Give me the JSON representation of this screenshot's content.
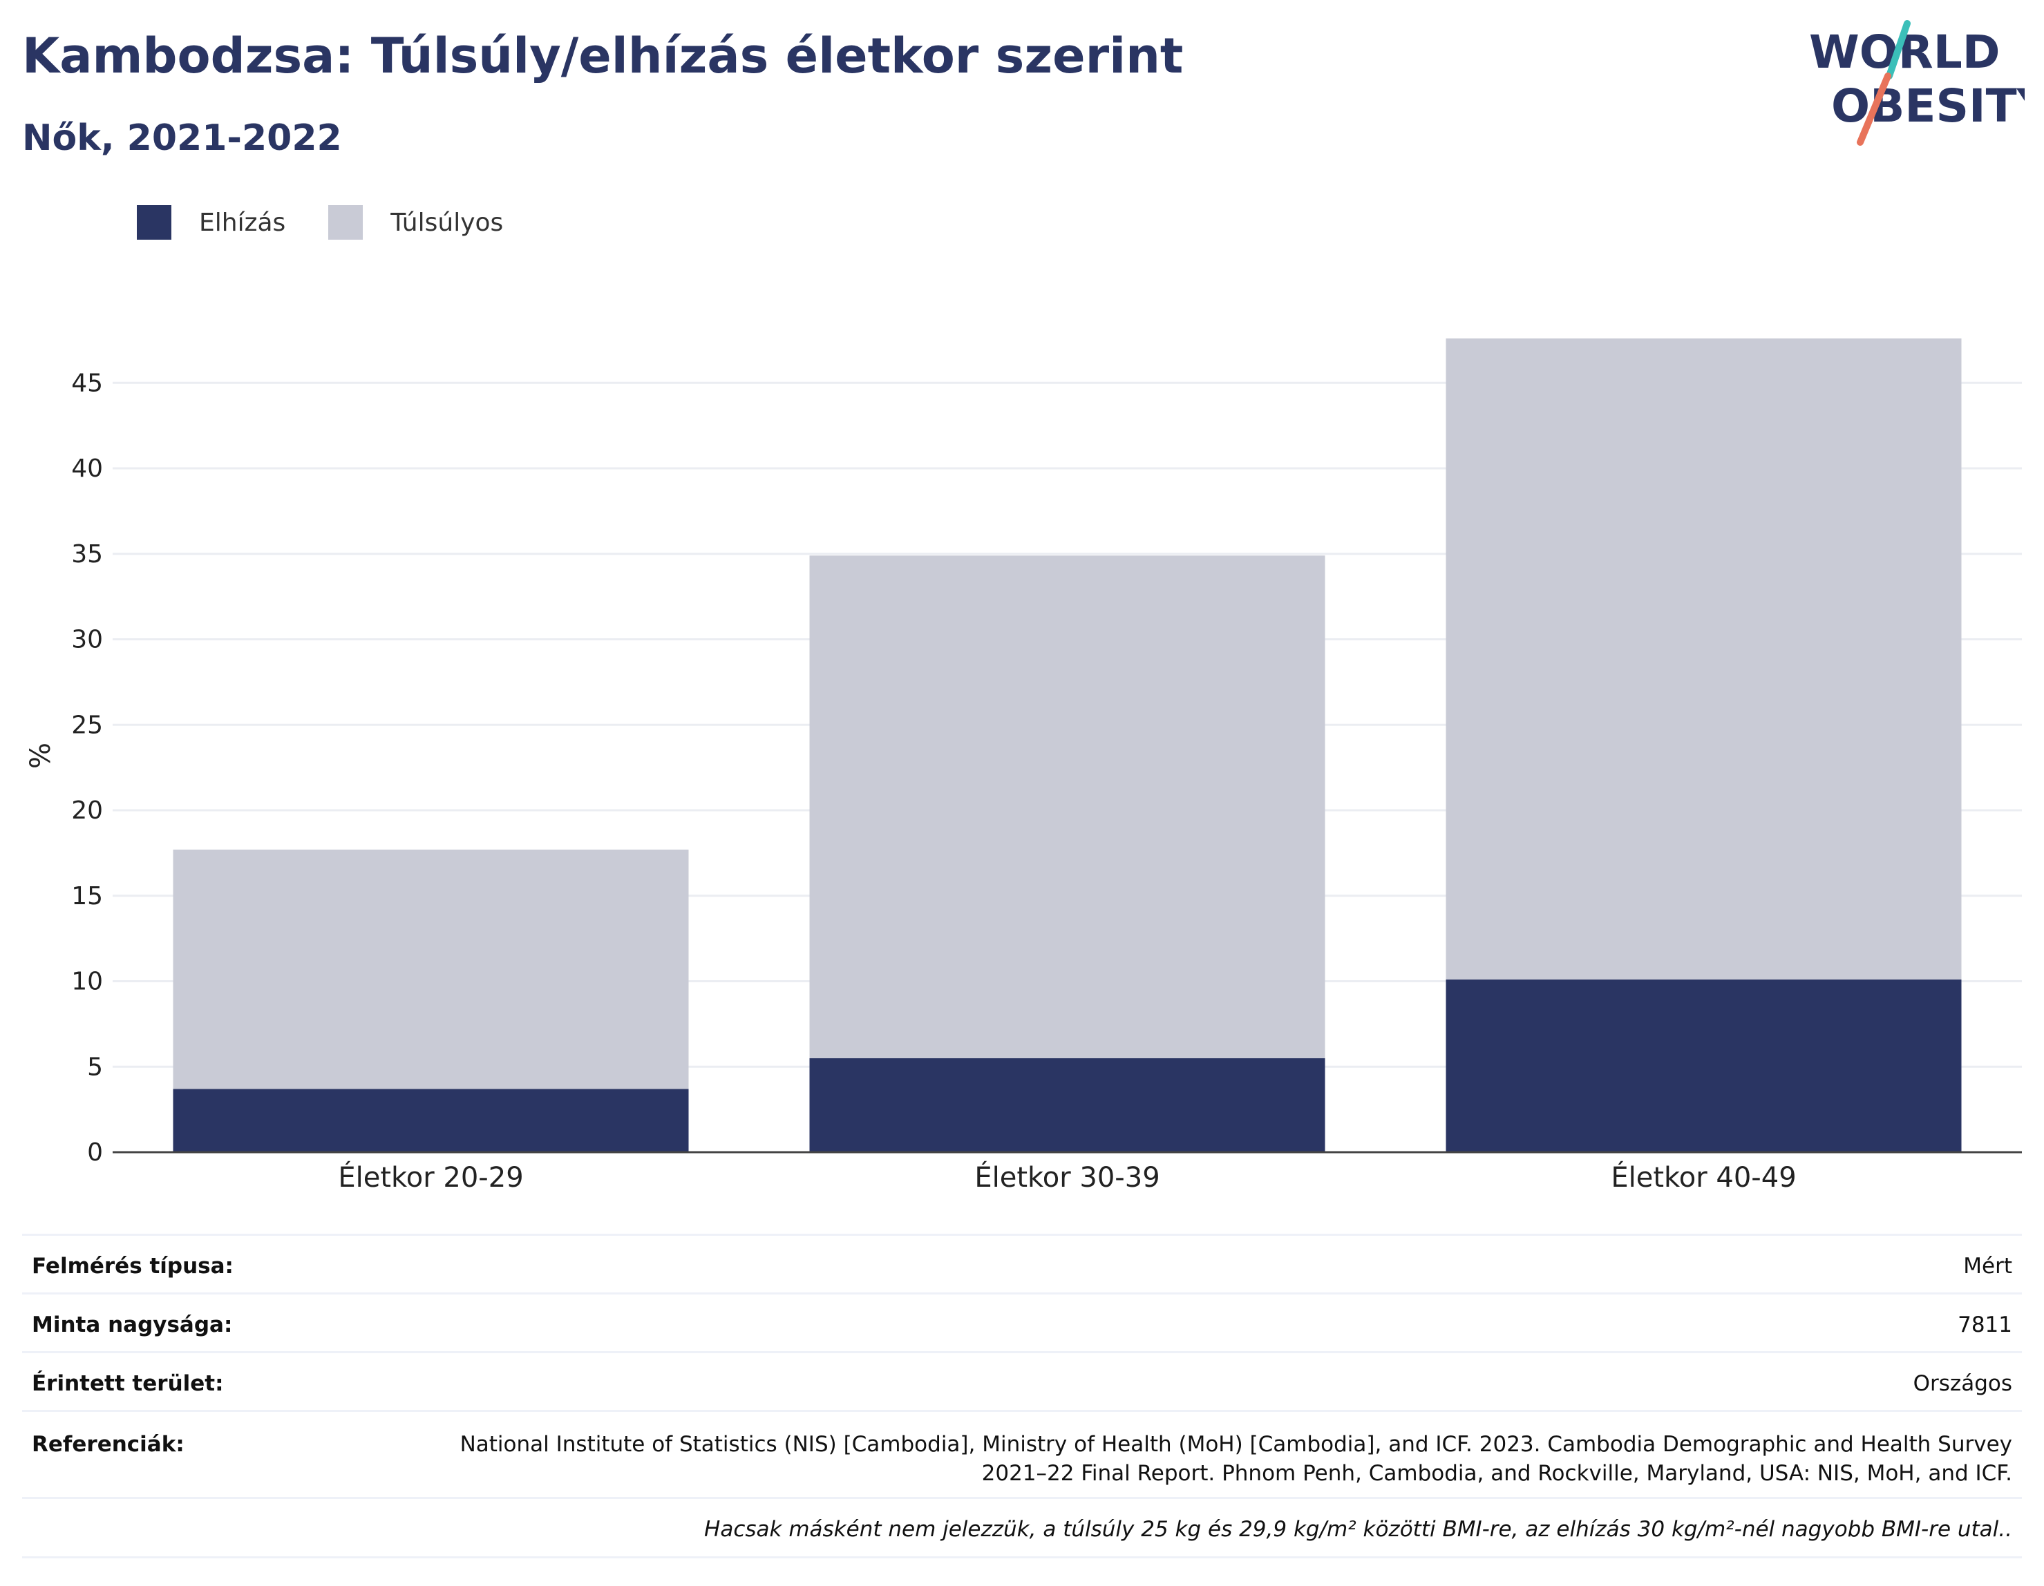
{
  "header": {
    "title": "Kambodzsa: Túlsúly/elhízás életkor szerint",
    "subtitle": "Nők, 2021-2022"
  },
  "logo": {
    "line1": "WORLD",
    "line2": "OBESITY",
    "accent_teal": "#3bbfb9",
    "accent_coral": "#e8735a"
  },
  "legend": [
    {
      "label": "Elhízás",
      "color": "#2a3563"
    },
    {
      "label": "Túlsúlyos",
      "color": "#c9cbd6"
    }
  ],
  "chart_data": {
    "type": "bar",
    "stacked": true,
    "categories": [
      "Életkor 20-29",
      "Életkor 30-39",
      "Életkor 40-49"
    ],
    "series": [
      {
        "name": "Elhízás",
        "values": [
          3.7,
          5.5,
          10.1
        ],
        "color": "#2a3563"
      },
      {
        "name": "Túlsúlyos",
        "values": [
          14.0,
          29.4,
          37.5
        ],
        "color": "#c9cbd6"
      }
    ],
    "title": "",
    "xlabel": "",
    "ylabel": "%",
    "ylim": [
      0,
      48
    ],
    "yticks": [
      0,
      5,
      10,
      15,
      20,
      25,
      30,
      35,
      40,
      45
    ],
    "grid": true,
    "legend_position": "top-left"
  },
  "info": {
    "rows": [
      {
        "key": "Felmérés típusa:",
        "value": "Mért"
      },
      {
        "key": "Minta nagysága:",
        "value": "7811"
      },
      {
        "key": "Érintett terület:",
        "value": "Országos"
      },
      {
        "key": "Referenciák:",
        "value": "National Institute of Statistics (NIS) [Cambodia], Ministry of Health (MoH) [Cambodia], and ICF. 2023. Cambodia Demographic and Health Survey 2021–22 Final Report. Phnom Penh, Cambodia, and Rockville, Maryland, USA: NIS, MoH, and ICF."
      }
    ],
    "note": "Hacsak másként nem jelezzük, a túlsúly 25 kg és 29,9 kg/m² közötti BMI-re, az elhízás 30 kg/m²-nél nagyobb BMI-re utal.."
  }
}
